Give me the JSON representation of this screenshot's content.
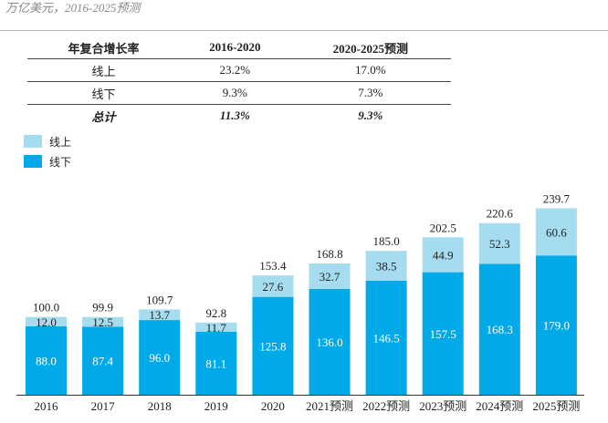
{
  "subtitle": "万亿美元，2016-2025预测",
  "colors": {
    "online": "#a6dcf0",
    "offline": "#00aae8",
    "axis": "#333333"
  },
  "table": {
    "headers": [
      "年复合增长率",
      "2016-2020",
      "2020-2025预测"
    ],
    "rows": [
      {
        "label": "线上",
        "c1": "23.2%",
        "c2": "17.0%"
      },
      {
        "label": "线下",
        "c1": "9.3%",
        "c2": "7.3%"
      }
    ],
    "total": {
      "label": "总计",
      "c1": "11.3%",
      "c2": "9.3%"
    }
  },
  "chart_data": {
    "type": "bar",
    "stacked": true,
    "title": "",
    "xlabel": "",
    "ylabel": "",
    "ylim": [
      0,
      250
    ],
    "categories": [
      "2016",
      "2017",
      "2018",
      "2019",
      "2020",
      "2021预测",
      "2022预测",
      "2023预测",
      "2024预测",
      "2025预测"
    ],
    "series": [
      {
        "name": "线下",
        "key": "offline",
        "values": [
          88.0,
          87.4,
          96.0,
          81.1,
          125.8,
          136.0,
          146.5,
          157.5,
          168.3,
          179.0
        ]
      },
      {
        "name": "线上",
        "key": "online",
        "values": [
          12.0,
          12.5,
          13.7,
          11.7,
          27.6,
          32.7,
          38.5,
          44.9,
          52.3,
          60.6
        ]
      }
    ],
    "totals": [
      100.0,
      99.9,
      109.7,
      92.8,
      153.4,
      168.8,
      185.0,
      202.5,
      220.6,
      239.7
    ],
    "legend": [
      {
        "name": "线上",
        "key": "online"
      },
      {
        "name": "线下",
        "key": "offline"
      }
    ],
    "legend_position": "top-left"
  }
}
